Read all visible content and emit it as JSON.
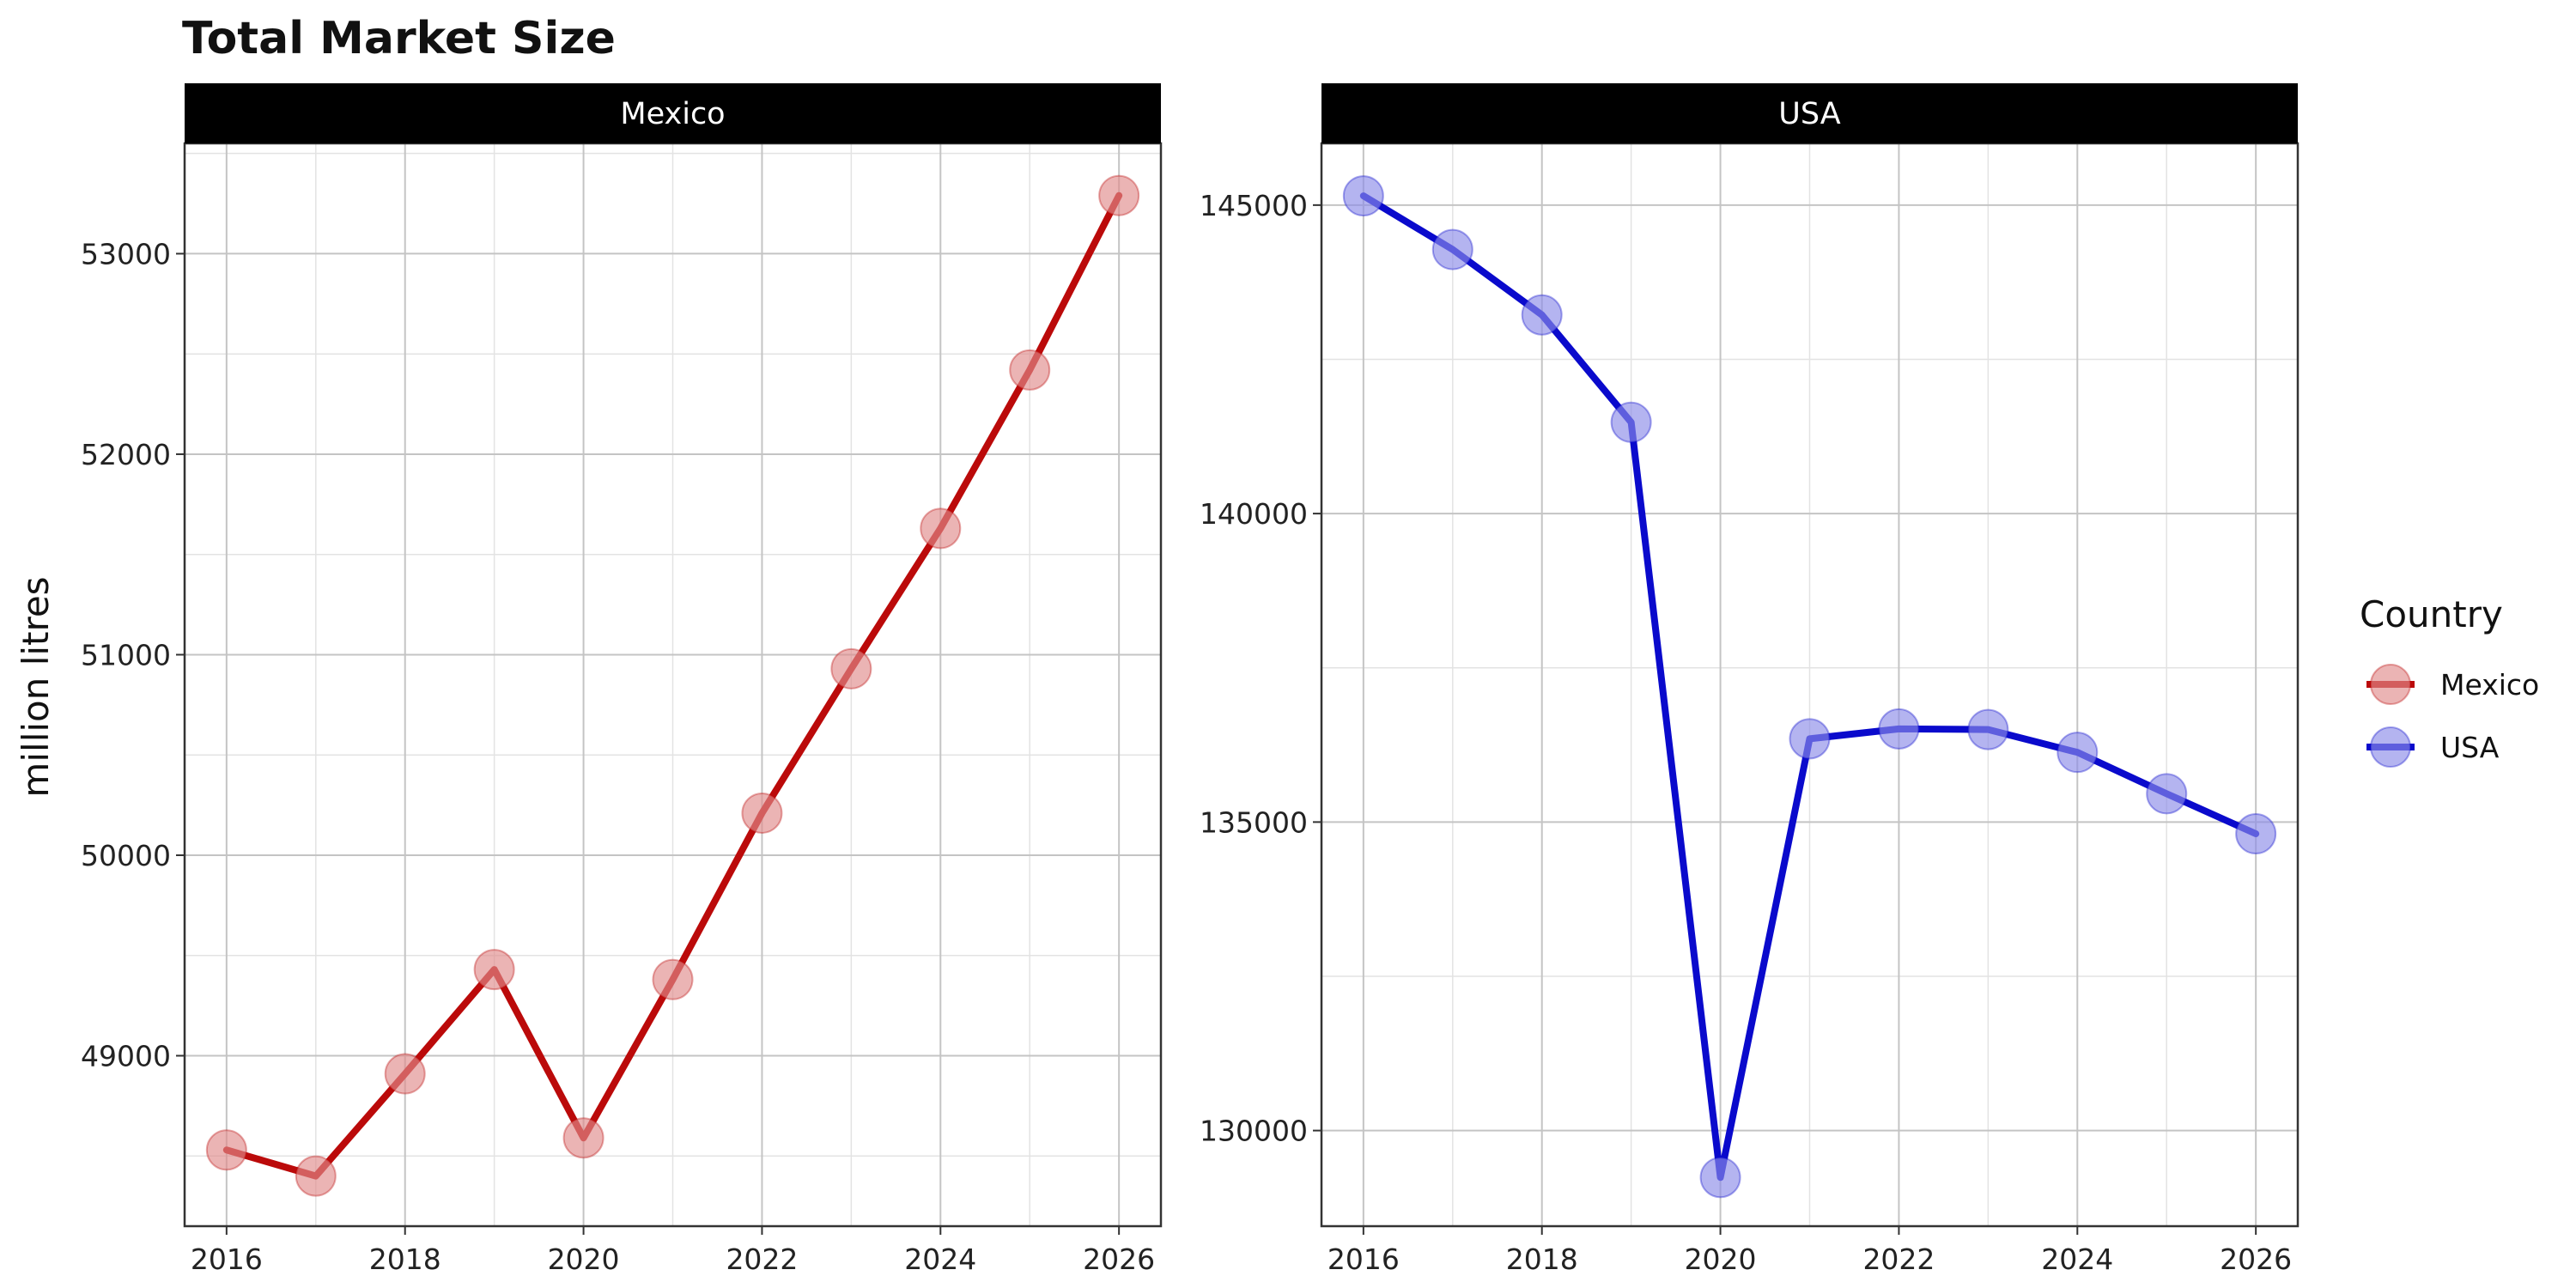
{
  "chart_data": {
    "type": "line",
    "title": "Total Market Size",
    "ylabel": "million litres",
    "xlabel": "",
    "x": [
      2016,
      2017,
      2018,
      2019,
      2020,
      2021,
      2022,
      2023,
      2024,
      2025,
      2026
    ],
    "x_ticks": [
      "2016",
      "2018",
      "2020",
      "2022",
      "2024",
      "2026"
    ],
    "grid": true,
    "facets": [
      {
        "name": "Mexico",
        "color": "#BB0A0A",
        "point_color": "#E08C8C",
        "ylim": [
          48150,
          53550
        ],
        "y_ticks": [
          49000,
          50000,
          51000,
          52000,
          53000
        ],
        "y_tick_labels": [
          "49000",
          "50000",
          "51000",
          "52000",
          "53000"
        ],
        "values": [
          48530,
          48400,
          48910,
          49430,
          48590,
          49380,
          50210,
          50930,
          51630,
          52420,
          53290
        ]
      },
      {
        "name": "USA",
        "color": "#0A0ACC",
        "point_color": "#8C8CE8",
        "ylim": [
          128450,
          146000
        ],
        "y_ticks": [
          130000,
          135000,
          140000,
          145000
        ],
        "y_tick_labels": [
          "130000",
          "135000",
          "140000",
          "145000"
        ],
        "values": [
          145150,
          144280,
          143220,
          141480,
          129240,
          136350,
          136510,
          136500,
          136130,
          135460,
          134810
        ]
      }
    ],
    "legend": {
      "title": "Country",
      "position": "right",
      "entries": [
        "Mexico",
        "USA"
      ]
    }
  }
}
